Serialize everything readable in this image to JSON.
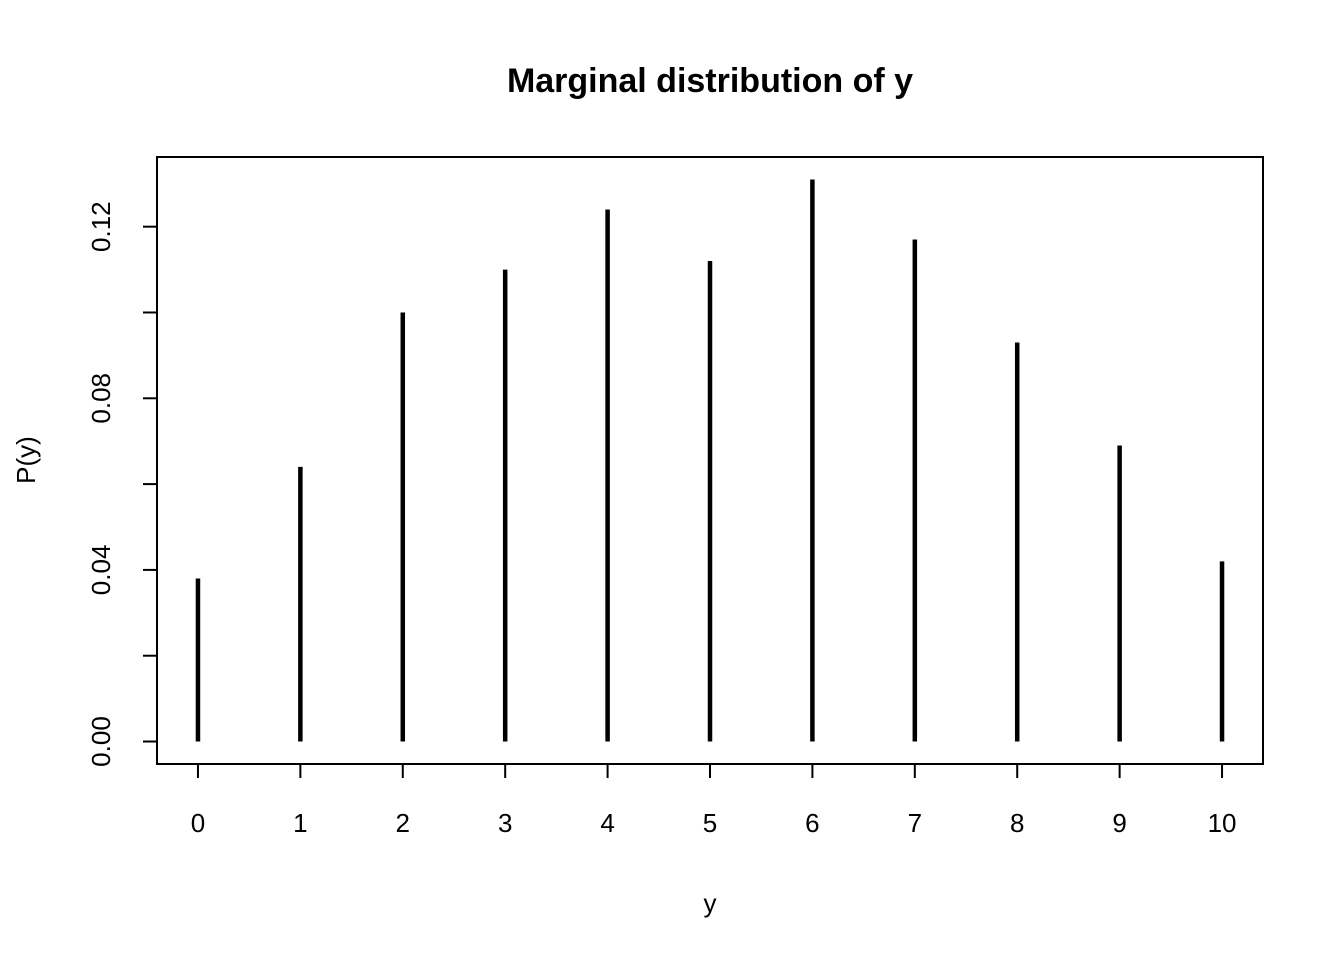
{
  "chart_data": {
    "type": "bar",
    "title": "Marginal distribution of y",
    "xlabel": "y",
    "ylabel": "P(y)",
    "x": [
      0,
      1,
      2,
      3,
      4,
      5,
      6,
      7,
      8,
      9,
      10
    ],
    "values": [
      0.038,
      0.064,
      0.1,
      0.11,
      0.124,
      0.112,
      0.131,
      0.117,
      0.093,
      0.069,
      0.042
    ],
    "x_ticks": [
      "0",
      "1",
      "2",
      "3",
      "4",
      "5",
      "6",
      "7",
      "8",
      "9",
      "10"
    ],
    "y_ticks": [
      0.0,
      0.02,
      0.04,
      0.06,
      0.08,
      0.1,
      0.12
    ],
    "y_tick_labels": [
      "0.00",
      "",
      "0.04",
      "",
      "0.08",
      "",
      "0.12"
    ],
    "xlim": [
      -0.4,
      10.4
    ],
    "ylim": [
      -0.00524,
      0.13624
    ],
    "grid": false,
    "legend": "none",
    "colors": {
      "line": "#000000",
      "background": "#ffffff"
    }
  }
}
